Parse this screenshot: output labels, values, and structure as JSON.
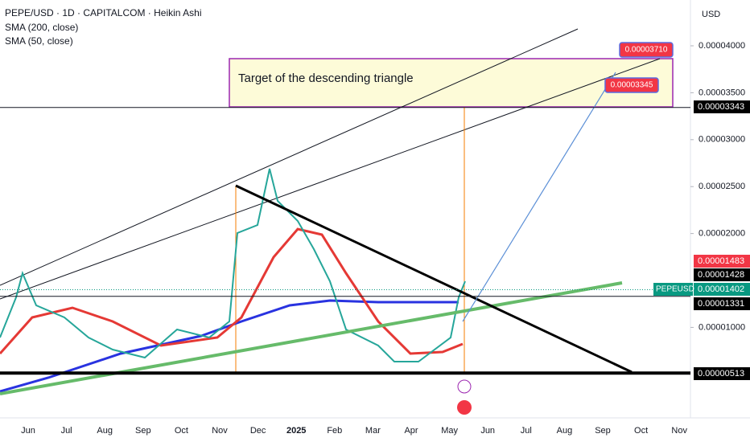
{
  "header": {
    "title": "PEPE/USD · 1D · CAPITALCOM · Heikin Ashi",
    "indicators": [
      "SMA (200, close)",
      "SMA (50, close)"
    ]
  },
  "price_axis": {
    "currency": "USD",
    "ticks": [
      {
        "value": 4e-05,
        "label": "0.00004000"
      },
      {
        "value": 3.5e-05,
        "label": "0.00003500"
      },
      {
        "value": 3e-05,
        "label": "0.00003000"
      },
      {
        "value": 2.5e-05,
        "label": "0.00002500"
      },
      {
        "value": 2e-05,
        "label": "0.00002000"
      },
      {
        "value": 1e-05,
        "label": "0.00001000"
      }
    ],
    "levels": [
      {
        "value": 3.343e-05,
        "label": "0.00003343",
        "color": "#000000"
      },
      {
        "value": 1.483e-05,
        "label": "0.00001483",
        "color": "#f23645"
      },
      {
        "value": 1.428e-05,
        "label": "0.00001428",
        "color": "#000000"
      },
      {
        "value": 1.402e-05,
        "label": "0.00001402",
        "color": "#089981"
      },
      {
        "value": 1.331e-05,
        "label": "0.00001331",
        "color": "#000000"
      },
      {
        "value": 5.13e-06,
        "label": "0.00000513",
        "color": "#000000"
      }
    ],
    "symbol": "PEPEUSD"
  },
  "time_axis": {
    "labels": [
      "Jun",
      "Jul",
      "Aug",
      "Sep",
      "Oct",
      "Nov",
      "Dec",
      "2025",
      "Feb",
      "Mar",
      "Apr",
      "May",
      "Jun",
      "Jul",
      "Aug",
      "Sep",
      "Oct",
      "Nov"
    ]
  },
  "annotation": {
    "text": "Target of the descending triangle",
    "callouts": [
      {
        "value": 3.71e-05,
        "label": "0.00003710"
      },
      {
        "value": 3.345e-05,
        "label": "0.00003345"
      }
    ]
  }
}
